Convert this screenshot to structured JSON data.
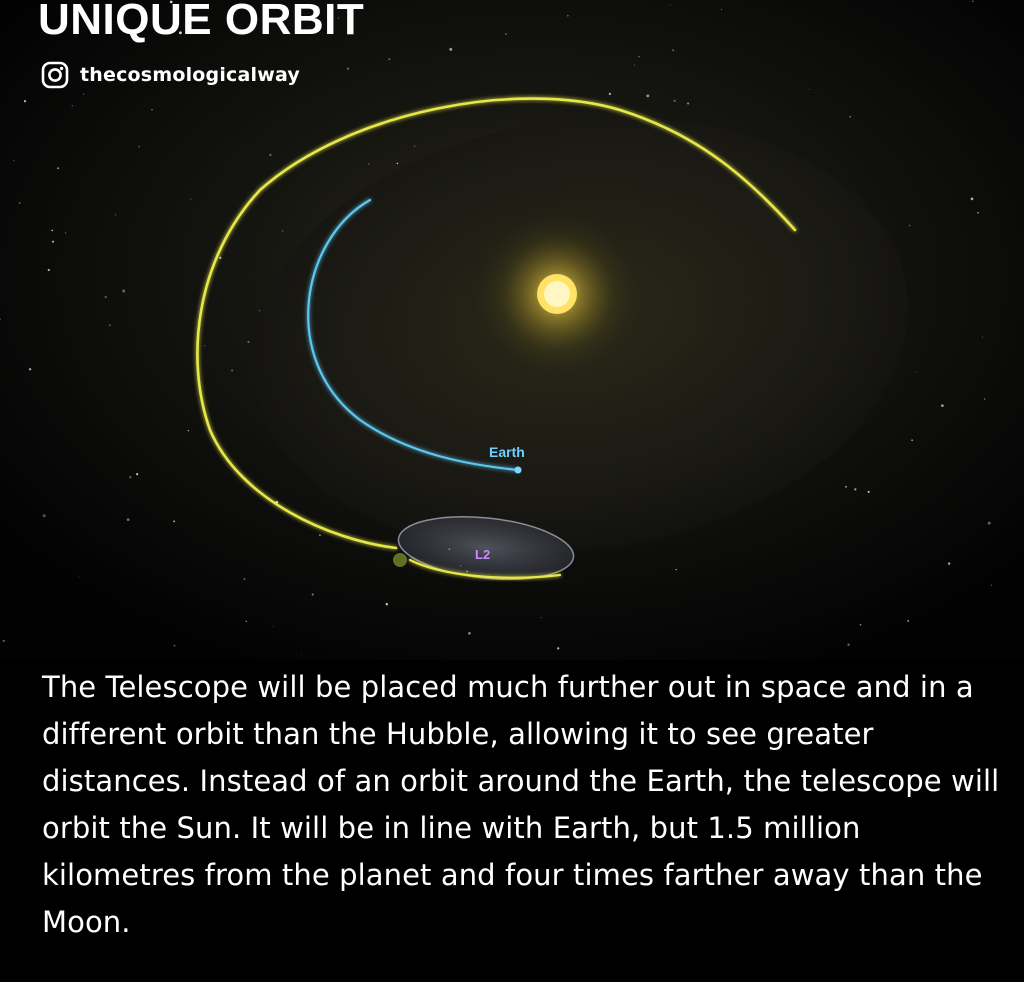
{
  "header": {
    "title": "UNIQUE ORBIT",
    "handle": "thecosmologicalway",
    "handle_icon": "instagram-icon"
  },
  "diagram": {
    "earth_label": "Earth",
    "l2_label": "L2"
  },
  "body": {
    "text": "The Telescope will be placed much further out in space and in a different orbit than the Hubble, allowing it to see greater distances. Instead of an orbit around the Earth, the telescope will orbit the Sun. It will be in line with Earth, but 1.5 million kilometres from the planet and four times farther away than the Moon."
  },
  "colors": {
    "background": "#000000",
    "sun": "#ffd83a",
    "telescope_orbit": "#e6e84a",
    "earth_orbit": "#5bc8f0",
    "l2_label": "#c98bff",
    "earth_label": "#6fd0ff"
  }
}
